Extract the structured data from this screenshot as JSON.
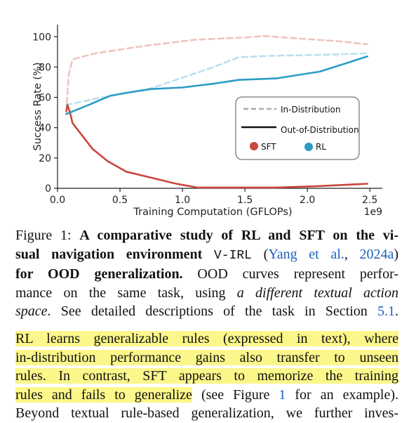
{
  "chart_data": {
    "type": "line",
    "xlabel": "Training Computation (GFLOPs)",
    "ylabel": "Success Rate (%)",
    "x_multiplier_label": "1e9",
    "xlim": [
      0,
      2.6
    ],
    "ylim": [
      0,
      108
    ],
    "x_ticks": [
      "0.0",
      "0.5",
      "1.0",
      "1.5",
      "2.0",
      "2.5"
    ],
    "y_ticks": [
      "0",
      "20",
      "40",
      "60",
      "80",
      "100"
    ],
    "colors": {
      "sft": "#c9463d",
      "rl": "#2a9cc6"
    },
    "legend": {
      "line_styles": [
        "In-Distribution",
        "Out-of-Distribution"
      ],
      "methods": [
        "SFT",
        "RL"
      ],
      "position": "center-right"
    },
    "series": [
      {
        "name": "SFT In-Distribution",
        "method": "SFT",
        "style": "dashed",
        "x": [
          0.07,
          0.09,
          0.12,
          0.3,
          0.7,
          1.1,
          1.5,
          1.65,
          1.9,
          2.25,
          2.48
        ],
        "y": [
          50,
          75,
          85,
          89,
          94,
          98,
          99.5,
          100.5,
          99,
          97,
          95
        ]
      },
      {
        "name": "SFT Out-of-Distribution",
        "method": "SFT",
        "style": "solid",
        "x": [
          0.07,
          0.08,
          0.1,
          0.12,
          0.28,
          0.4,
          0.55,
          0.75,
          0.95,
          1.12,
          1.4,
          1.75,
          2.1,
          2.48
        ],
        "y": [
          51,
          55,
          50,
          43,
          26,
          18,
          11,
          7,
          3,
          0.5,
          0.5,
          0.5,
          1.5,
          3
        ]
      },
      {
        "name": "RL In-Distribution",
        "method": "RL",
        "style": "dashed",
        "x": [
          0.07,
          0.3,
          0.5,
          0.75,
          1.0,
          1.25,
          1.45,
          1.75,
          2.1,
          2.48
        ],
        "y": [
          55,
          59,
          62,
          66,
          73,
          80,
          86.5,
          87.5,
          88,
          89
        ]
      },
      {
        "name": "RL Out-of-Distribution",
        "method": "RL",
        "style": "solid",
        "x": [
          0.07,
          0.25,
          0.42,
          0.55,
          0.75,
          1.0,
          1.25,
          1.45,
          1.75,
          2.1,
          2.48
        ],
        "y": [
          49,
          55,
          61,
          63,
          65.5,
          66.5,
          69,
          71.5,
          72.5,
          77,
          87
        ]
      }
    ]
  },
  "caption": {
    "label": "Figure 1:",
    "bold_1": "A comparative study of RL and SFT on the vi-",
    "bold_2": "sual navigation environment",
    "env_name": "V-IRL",
    "cite_open": "(",
    "cite_author": "Yang et al.",
    "cite_sep": ", ",
    "cite_year": "2024a",
    "cite_close": ")",
    "bold_3": "for OOD generalization.",
    "plain_3": " OOD curves represent perfor-",
    "line_4": "mance on the same task, using ",
    "italic_5": "a different textual action",
    "italic_6": "space",
    "plain_6": ". See detailed descriptions of the task in Section ",
    "section_ref": "5.1",
    "period": "."
  },
  "paragraph": {
    "l1": "RL learns generalizable rules (expressed in text), where",
    "l2": "in-distribution performance gains also transfer to unseen",
    "l3": "rules.  In contrast, SFT appears to memorize the training",
    "l4_hl": "rules and fails to generalize",
    "l4_a": " (see Figure ",
    "fig_ref": "1",
    "l4_b": " for an example).",
    "l5": "Beyond textual rule-based generalization, we further inves-"
  }
}
